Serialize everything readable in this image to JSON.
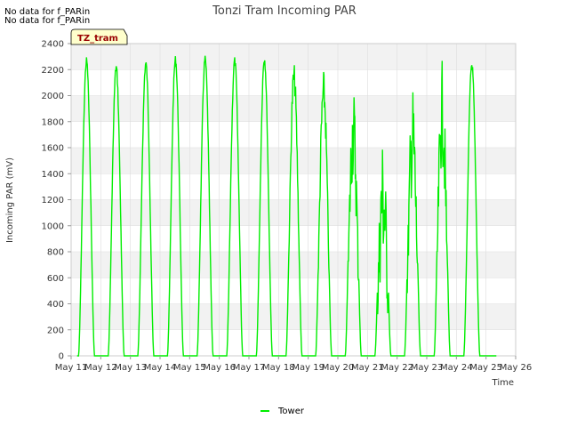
{
  "notices": [
    "No data for f_PARin",
    "No data for f_PARin"
  ],
  "site_tag": "TZ_tram",
  "colors": {
    "series": "#00ee00",
    "band": "#f2f2f2",
    "grid": "#dddddd",
    "tag_fill": "#ffffcc"
  },
  "chart_data": {
    "type": "line",
    "title": "Tonzi Tram Incoming PAR",
    "xlabel": "Time",
    "ylabel": "Incoming PAR (mV)",
    "ylim": [
      0,
      2400
    ],
    "yticks": [
      0,
      200,
      400,
      600,
      800,
      1000,
      1200,
      1400,
      1600,
      1800,
      2000,
      2200,
      2400
    ],
    "xlim": [
      "May 11",
      "May 26"
    ],
    "xticks": [
      "May 11",
      "May 12",
      "May 13",
      "May 14",
      "May 15",
      "May 16",
      "May 17",
      "May 18",
      "May 19",
      "May 20",
      "May 21",
      "May 22",
      "May 23",
      "May 24",
      "May 25",
      "May 26"
    ],
    "grid": true,
    "legend": "bottom-center",
    "series": [
      {
        "name": "Tower",
        "daily_peaks": [
          {
            "day": "May 11",
            "peak": 2300
          },
          {
            "day": "May 12",
            "peak": 2250
          },
          {
            "day": "May 13",
            "peak": 2280
          },
          {
            "day": "May 14",
            "peak": 2310
          },
          {
            "day": "May 15",
            "peak": 2310
          },
          {
            "day": "May 16",
            "peak": 2300
          },
          {
            "day": "May 17",
            "peak": 2320
          },
          {
            "day": "May 18",
            "peak": 2250
          },
          {
            "day": "May 19",
            "peak": 2190
          },
          {
            "day": "May 20",
            "peak": 2090
          },
          {
            "day": "May 21",
            "peak": 1720
          },
          {
            "day": "May 22",
            "peak": 2080
          },
          {
            "day": "May 23",
            "peak": 2270
          },
          {
            "day": "May 24",
            "peak": 2270
          }
        ]
      }
    ]
  }
}
